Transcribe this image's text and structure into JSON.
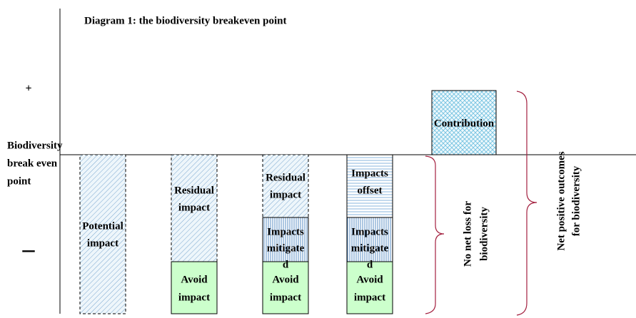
{
  "title": "Diagram 1:  the biodiversity breakeven point",
  "plus": "+",
  "minus": "–",
  "axis_label": [
    "Biodiversity",
    "break even",
    "point"
  ],
  "columns": [
    {
      "blocks": [
        {
          "label": [
            "Potential",
            "impact"
          ]
        }
      ]
    },
    {
      "blocks": [
        {
          "label": [
            "Residual",
            "impact"
          ]
        },
        {
          "label": [
            "Avoid",
            "impact"
          ]
        }
      ]
    },
    {
      "blocks": [
        {
          "label": [
            "Residual",
            "impact"
          ]
        },
        {
          "label": [
            "Impacts",
            "mitigate",
            "d"
          ]
        },
        {
          "label": [
            "Avoid",
            "impact"
          ]
        }
      ]
    },
    {
      "blocks": [
        {
          "label": [
            "Impacts",
            "offset"
          ]
        },
        {
          "label": [
            "Impacts",
            "mitigate",
            "d"
          ]
        },
        {
          "label": [
            "Avoid",
            "impact"
          ]
        }
      ]
    }
  ],
  "contribution": {
    "label": [
      "Contribution"
    ]
  },
  "braces": [
    {
      "label": [
        "No net loss for",
        "biodiversity"
      ]
    },
    {
      "label": [
        "Net positive outcomes",
        "for biodiversity"
      ]
    }
  ]
}
